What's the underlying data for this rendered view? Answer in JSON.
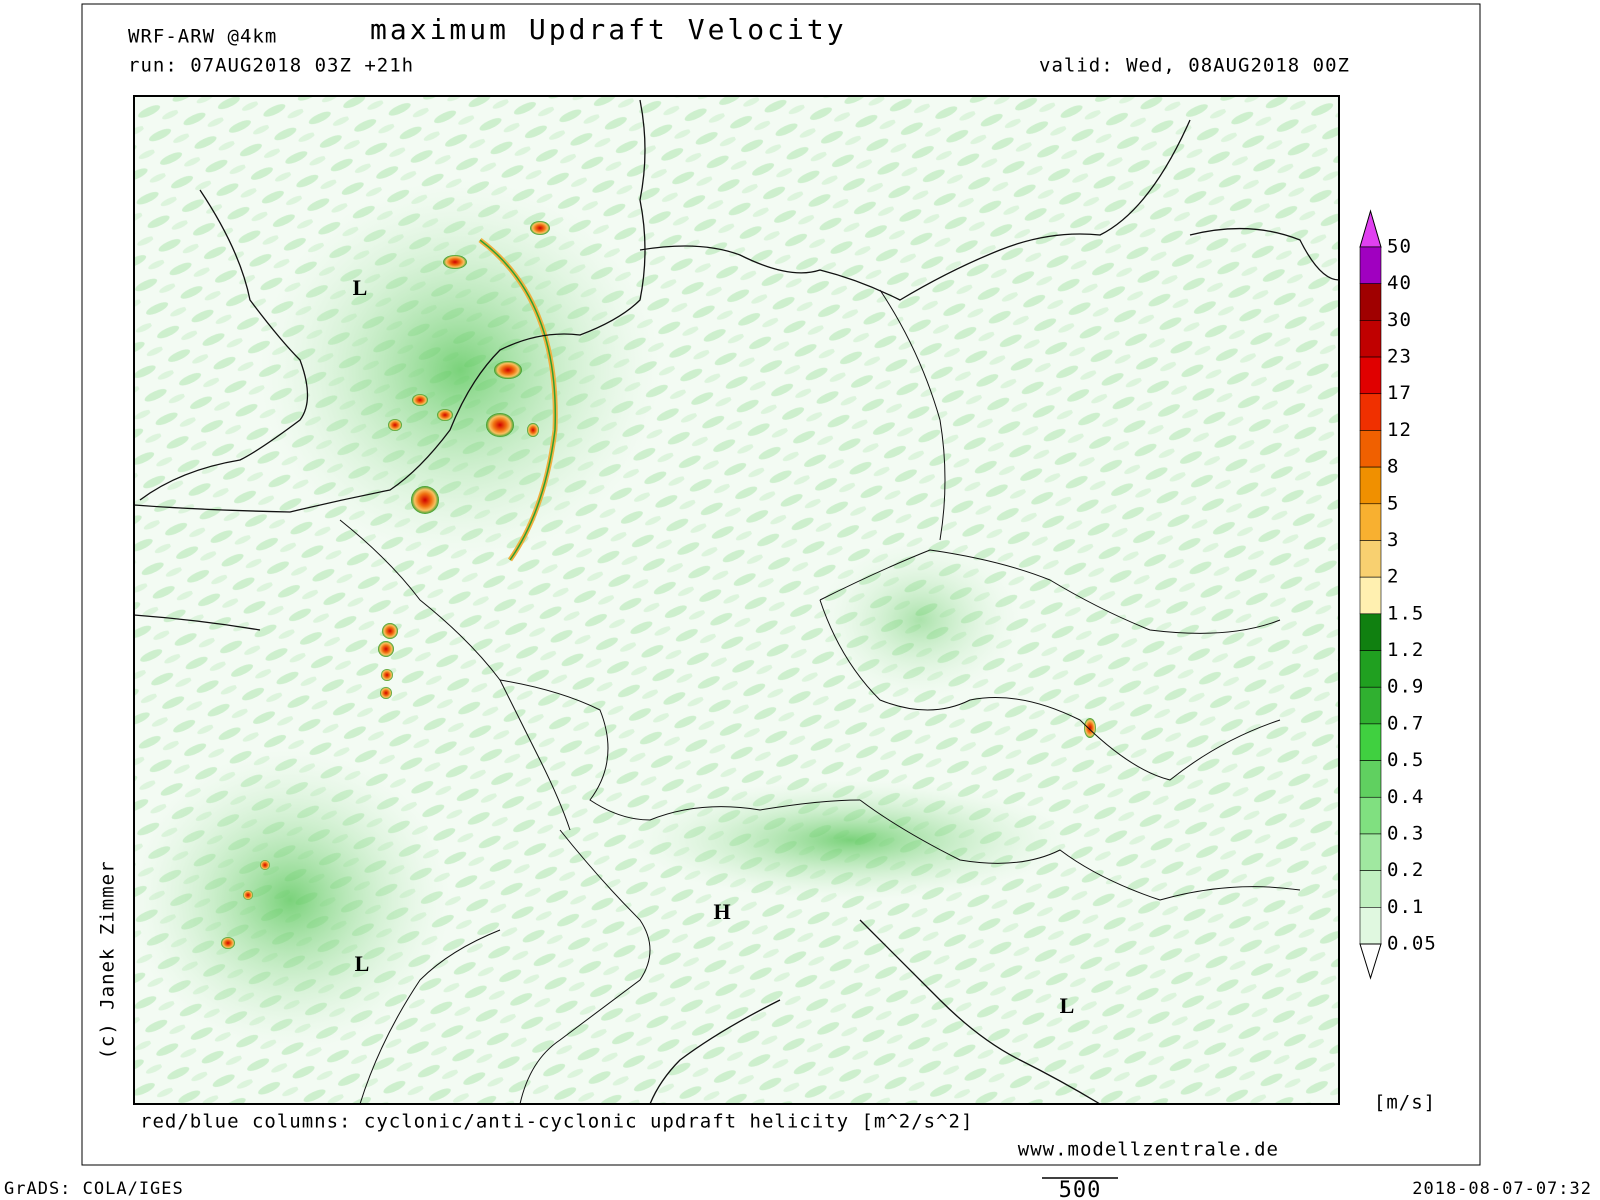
{
  "header": {
    "model": "WRF-ARW @4km",
    "title": "maximum Updraft Velocity",
    "run": "run: 07AUG2018 03Z +21h",
    "valid": "valid: Wed, 08AUG2018 00Z"
  },
  "map": {
    "pressure_labels": [
      "L",
      "L",
      "H",
      "L"
    ]
  },
  "colorbar": {
    "labels": [
      "50",
      "40",
      "30",
      "23",
      "17",
      "12",
      "8",
      "5",
      "3",
      "2",
      "1.5",
      "1.2",
      "0.9",
      "0.7",
      "0.5",
      "0.4",
      "0.3",
      "0.2",
      "0.1",
      "0.05"
    ],
    "colors": [
      "#e040f0",
      "#a000c0",
      "#a00000",
      "#c00000",
      "#e00000",
      "#f03000",
      "#f06000",
      "#f09000",
      "#f8b030",
      "#f8d070",
      "#fff0b0",
      "#108010",
      "#20a020",
      "#30b030",
      "#40d040",
      "#60d060",
      "#80e080",
      "#a0e8a0",
      "#c0f0c0",
      "#e0f8e0",
      "#ffffff"
    ],
    "unit": "[m/s]"
  },
  "footer": {
    "copyright": "(c) Janek Zimmer",
    "note": "red/blue columns: cyclonic/anti-cyclonic updraft helicity [m^2/s^2]",
    "website": "www.modellzentrale.de",
    "software": "GrADS: COLA/IGES",
    "scale": "500",
    "timestamp": "2018-08-07-07:32"
  }
}
